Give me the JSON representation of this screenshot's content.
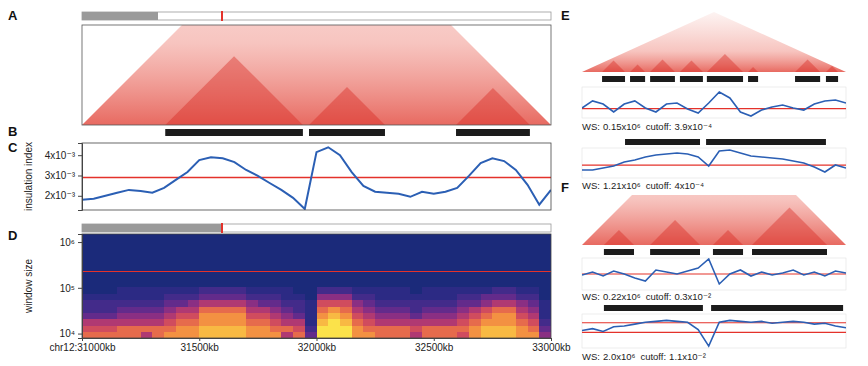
{
  "chart_data": [
    {
      "label": "A",
      "type": "contact_map",
      "xlim": [
        31000,
        33000
      ]
    },
    {
      "label": "B",
      "type": "segments",
      "xlim": [
        31000,
        33000
      ],
      "segments": [
        [
          31355,
          31942
        ],
        [
          31968,
          32292
        ],
        [
          32595,
          32910
        ]
      ]
    },
    {
      "label": "C",
      "type": "line",
      "ylabel": "insulation index",
      "tick_labels": "y",
      "color": "#2b5fb4",
      "xlim": [
        31000,
        33000
      ],
      "ylim": [
        0.0013,
        0.0046
      ],
      "yticks": [
        {
          "value": 0.002,
          "label": "2x10⁻³"
        },
        {
          "value": 0.003,
          "label": "3x10⁻³"
        },
        {
          "value": 0.004,
          "label": "4x10⁻³"
        }
      ],
      "threshold": 0.0029,
      "x": [
        31000,
        31050,
        31100,
        31150,
        31200,
        31250,
        31300,
        31350,
        31400,
        31450,
        31500,
        31550,
        31600,
        31650,
        31700,
        31750,
        31800,
        31850,
        31900,
        31950,
        32000,
        32050,
        32100,
        32150,
        32200,
        32250,
        32300,
        32350,
        32400,
        32450,
        32500,
        32550,
        32600,
        32650,
        32700,
        32750,
        32800,
        32850,
        32900,
        32950,
        33000
      ],
      "values": [
        0.0018,
        0.00185,
        0.002,
        0.00215,
        0.00229,
        0.00224,
        0.00215,
        0.00239,
        0.00278,
        0.00317,
        0.00376,
        0.0039,
        0.00385,
        0.00366,
        0.00327,
        0.00298,
        0.00263,
        0.00229,
        0.0019,
        0.00135,
        0.00415,
        0.00439,
        0.004,
        0.00317,
        0.00249,
        0.0022,
        0.00215,
        0.0021,
        0.00195,
        0.0022,
        0.0021,
        0.0022,
        0.00239,
        0.00298,
        0.00361,
        0.00385,
        0.00371,
        0.00327,
        0.00254,
        0.00156,
        0.00229
      ]
    },
    {
      "label": "D",
      "type": "heatmap",
      "ylabel": "window size",
      "log": "y",
      "xlim": [
        31000,
        33000
      ],
      "ylim": [
        8000,
        1500000
      ],
      "xticks": [
        {
          "value": 31000,
          "label": "chr12:31000kb"
        },
        {
          "value": 31500,
          "label": "31500kb"
        },
        {
          "value": 32000,
          "label": "32000kb"
        },
        {
          "value": 32500,
          "label": "32500kb"
        },
        {
          "value": 33000,
          "label": "33000kb"
        }
      ],
      "yticks": [
        {
          "value": 10000,
          "label": "10⁴"
        },
        {
          "value": 100000,
          "label": "10⁵"
        },
        {
          "value": 1000000,
          "label": "10⁶"
        }
      ],
      "threshold": 230000,
      "x_edges": [
        31000,
        31050,
        31100,
        31150,
        31200,
        31250,
        31300,
        31350,
        31400,
        31450,
        31500,
        31550,
        31600,
        31650,
        31700,
        31750,
        31800,
        31850,
        31900,
        31950,
        32000,
        32050,
        32100,
        32150,
        32200,
        32250,
        32300,
        32350,
        32400,
        32450,
        32500,
        32550,
        32600,
        32650,
        32700,
        32750,
        32800,
        32850,
        32900,
        32950,
        33000
      ],
      "y_edges": [
        8000,
        11000,
        15000,
        21000,
        29000,
        40000,
        55000,
        76000,
        105000,
        150000,
        1500000
      ],
      "values": [
        [
          0.7,
          0.7,
          0.7,
          0.7,
          0.7,
          0.5,
          0.7,
          0.8,
          0.8,
          0.8,
          0.9,
          0.9,
          0.9,
          0.9,
          0.8,
          0.8,
          0.8,
          0.5,
          0.7,
          0.3,
          1.0,
          1.0,
          1.0,
          0.8,
          0.8,
          0.7,
          0.7,
          0.7,
          0.5,
          0.7,
          0.7,
          0.7,
          0.6,
          0.8,
          0.9,
          0.9,
          0.9,
          0.8,
          0.8,
          0.4
        ],
        [
          0.6,
          0.6,
          0.6,
          0.7,
          0.7,
          0.7,
          0.7,
          0.7,
          0.8,
          0.8,
          0.9,
          0.9,
          0.9,
          0.9,
          0.8,
          0.8,
          0.7,
          0.7,
          0.6,
          0.2,
          1.0,
          1.0,
          1.0,
          0.8,
          0.7,
          0.7,
          0.7,
          0.7,
          0.6,
          0.7,
          0.7,
          0.7,
          0.7,
          0.8,
          0.9,
          0.9,
          0.9,
          0.8,
          0.7,
          0.3
        ],
        [
          0.5,
          0.5,
          0.5,
          0.5,
          0.5,
          0.5,
          0.5,
          0.6,
          0.7,
          0.7,
          0.8,
          0.8,
          0.8,
          0.8,
          0.7,
          0.7,
          0.6,
          0.5,
          0.5,
          0.1,
          0.9,
          1.0,
          0.9,
          0.7,
          0.6,
          0.5,
          0.5,
          0.5,
          0.5,
          0.5,
          0.5,
          0.5,
          0.6,
          0.7,
          0.8,
          0.8,
          0.8,
          0.7,
          0.6,
          0.2
        ],
        [
          0.3,
          0.3,
          0.3,
          0.4,
          0.4,
          0.4,
          0.4,
          0.5,
          0.6,
          0.6,
          0.8,
          0.8,
          0.8,
          0.8,
          0.6,
          0.6,
          0.5,
          0.4,
          0.3,
          0.1,
          0.8,
          0.9,
          0.8,
          0.6,
          0.5,
          0.4,
          0.4,
          0.4,
          0.3,
          0.4,
          0.4,
          0.4,
          0.5,
          0.6,
          0.7,
          0.8,
          0.8,
          0.6,
          0.5,
          0.1
        ],
        [
          0.2,
          0.2,
          0.2,
          0.3,
          0.3,
          0.3,
          0.3,
          0.4,
          0.5,
          0.5,
          0.7,
          0.7,
          0.7,
          0.7,
          0.5,
          0.5,
          0.4,
          0.3,
          0.2,
          0.1,
          0.7,
          0.8,
          0.7,
          0.5,
          0.4,
          0.3,
          0.3,
          0.3,
          0.2,
          0.3,
          0.3,
          0.3,
          0.4,
          0.5,
          0.6,
          0.7,
          0.7,
          0.5,
          0.4,
          0.1
        ],
        [
          0.2,
          0.2,
          0.2,
          0.2,
          0.2,
          0.2,
          0.2,
          0.3,
          0.3,
          0.4,
          0.5,
          0.5,
          0.5,
          0.5,
          0.4,
          0.3,
          0.3,
          0.2,
          0.2,
          0.1,
          0.6,
          0.6,
          0.6,
          0.4,
          0.3,
          0.2,
          0.2,
          0.2,
          0.2,
          0.2,
          0.2,
          0.2,
          0.3,
          0.3,
          0.4,
          0.5,
          0.5,
          0.4,
          0.3,
          0.1
        ],
        [
          0.1,
          0.1,
          0.1,
          0.1,
          0.1,
          0.1,
          0.1,
          0.2,
          0.2,
          0.2,
          0.3,
          0.3,
          0.3,
          0.3,
          0.2,
          0.2,
          0.2,
          0.1,
          0.1,
          0,
          0.4,
          0.4,
          0.4,
          0.2,
          0.2,
          0.1,
          0.1,
          0.1,
          0.1,
          0.1,
          0.1,
          0.1,
          0.2,
          0.2,
          0.3,
          0.3,
          0.3,
          0.2,
          0.2,
          0
        ],
        [
          0,
          0,
          0,
          0.1,
          0.1,
          0.1,
          0.1,
          0.1,
          0.1,
          0.1,
          0.2,
          0.2,
          0.2,
          0.2,
          0.1,
          0.1,
          0.1,
          0.1,
          0,
          0,
          0.2,
          0.2,
          0.2,
          0.1,
          0.1,
          0.1,
          0.1,
          0.1,
          0,
          0.1,
          0.1,
          0.1,
          0.1,
          0.1,
          0.1,
          0.2,
          0.2,
          0.1,
          0.1,
          0
        ],
        [
          0,
          0,
          0,
          0,
          0,
          0,
          0,
          0,
          0,
          0,
          0,
          0,
          0,
          0,
          0,
          0,
          0,
          0,
          0,
          0,
          0,
          0,
          0,
          0,
          0,
          0,
          0,
          0,
          0,
          0,
          0,
          0,
          0,
          0,
          0,
          0,
          0,
          0,
          0,
          0
        ],
        [
          0,
          0,
          0,
          0,
          0,
          0,
          0,
          0,
          0,
          0,
          0,
          0,
          0,
          0,
          0,
          0,
          0,
          0,
          0,
          0,
          0,
          0,
          0,
          0,
          0,
          0,
          0,
          0,
          0,
          0,
          0,
          0,
          0,
          0,
          0,
          0,
          0,
          0,
          0,
          0
        ]
      ]
    },
    {
      "label": "E",
      "type": "track_panel",
      "tick_labels": false,
      "color": "#2b5fb4",
      "ws_text": "WS:",
      "cutoff_text": "cutoff:",
      "xlim": [
        0,
        100
      ],
      "x": [
        0,
        4,
        8,
        12,
        16,
        20,
        24,
        28,
        32,
        36,
        40,
        44,
        48,
        52,
        56,
        60,
        64,
        68,
        72,
        76,
        80,
        84,
        88,
        92,
        96,
        100
      ],
      "rows": [
        {
          "segments": [
            [
              7.6,
              16.3
            ],
            [
              18.2,
              23.9
            ],
            [
              25.8,
              35.2
            ],
            [
              37.1,
              45.8
            ],
            [
              47.3,
              61.0
            ],
            [
              62.9,
              66.7
            ],
            [
              80.7,
              90.2
            ],
            [
              92.4,
              97.0
            ]
          ],
          "ylim": [
            0.0003,
            0.0006
          ],
          "values": [
            0.000397,
            0.000465,
            0.000435,
            0.000358,
            0.000435,
            0.000465,
            0.000397,
            0.000358,
            0.000435,
            0.000445,
            0.000387,
            0.000348,
            0.000445,
            0.000552,
            0.000494,
            0.000358,
            0.000319,
            0.000377,
            0.000406,
            0.000426,
            0.000397,
            0.000377,
            0.000435,
            0.000465,
            0.000474,
            0.000445
          ],
          "window_size": {
            "value": 150000,
            "label": "0.15x10⁶"
          },
          "cutoff": {
            "value": 0.00039,
            "label": "3.9x10⁻⁴"
          }
        },
        {
          "segments": [
            [
              16.3,
              44.7
            ],
            [
              47.0,
              92.4
            ]
          ],
          "ylim": [
            0.00025,
            0.0006
          ],
          "values": [
            0.000343,
            0.000343,
            0.000367,
            0.00039,
            0.000437,
            0.00046,
            0.000495,
            0.000518,
            0.00053,
            0.000542,
            0.00053,
            0.000495,
            0.00039,
            0.000565,
            0.000577,
            0.000542,
            0.000507,
            0.000495,
            0.000483,
            0.000472,
            0.000448,
            0.000425,
            0.000378,
            0.00032,
            0.000402,
            0.000367
          ],
          "window_size": {
            "value": 1210000,
            "label": "1.21x10⁶"
          },
          "cutoff": {
            "value": 0.0004,
            "label": "4x10⁻⁴"
          }
        }
      ]
    },
    {
      "label": "F",
      "type": "track_panel",
      "tick_labels": false,
      "color": "#2b5fb4",
      "ws_text": "WS:",
      "cutoff_text": "cutoff:",
      "xlim": [
        0,
        100
      ],
      "x": [
        0,
        4,
        8,
        12,
        16,
        20,
        24,
        28,
        32,
        36,
        40,
        44,
        48,
        52,
        56,
        60,
        64,
        68,
        72,
        76,
        80,
        84,
        88,
        92,
        96,
        100
      ],
      "rows": [
        {
          "segments": [
            [
              8.3,
              19.7
            ],
            [
              25.8,
              44.7
            ],
            [
              49.6,
              61.0
            ],
            [
              64.4,
              92.8
            ]
          ],
          "ylim": [
            0.0006,
            0.0054
          ],
          "values": [
            0.00285,
            0.0033,
            0.0027,
            0.00345,
            0.003,
            0.0024,
            0.00195,
            0.0036,
            0.0033,
            0.003,
            0.00345,
            0.0039,
            0.00525,
            0.0015,
            0.003,
            0.0036,
            0.0027,
            0.0033,
            0.00285,
            0.00315,
            0.0036,
            0.00285,
            0.0033,
            0.0027,
            0.00345,
            0.00315
          ],
          "window_size": {
            "value": 220000,
            "label": "0.22x10⁶"
          },
          "cutoff": {
            "value": 0.003,
            "label": "0.3x10⁻²"
          }
        },
        {
          "segments": [
            [
              8.3,
              45.8
            ],
            [
              48.9,
              98.9
            ]
          ],
          "ylim": [
            -0.015,
            0.02
          ],
          "values": [
            0.003,
            0.0049,
            0.002,
            0.0068,
            0.0077,
            0.0096,
            0.0115,
            0.0124,
            0.0134,
            0.0124,
            0.0115,
            0.0039,
            -0.0131,
            0.0115,
            0.0134,
            0.0124,
            0.0115,
            0.0124,
            0.0105,
            0.0115,
            0.0124,
            0.0115,
            0.0096,
            0.0105,
            0.0077,
            0.0058
          ],
          "window_size": {
            "value": 2000000,
            "label": "2.0x10⁶"
          },
          "cutoff": {
            "value": 0.011,
            "label": "1.1x10⁻²"
          },
          "second_threshold": 0.001
        }
      ]
    }
  ]
}
